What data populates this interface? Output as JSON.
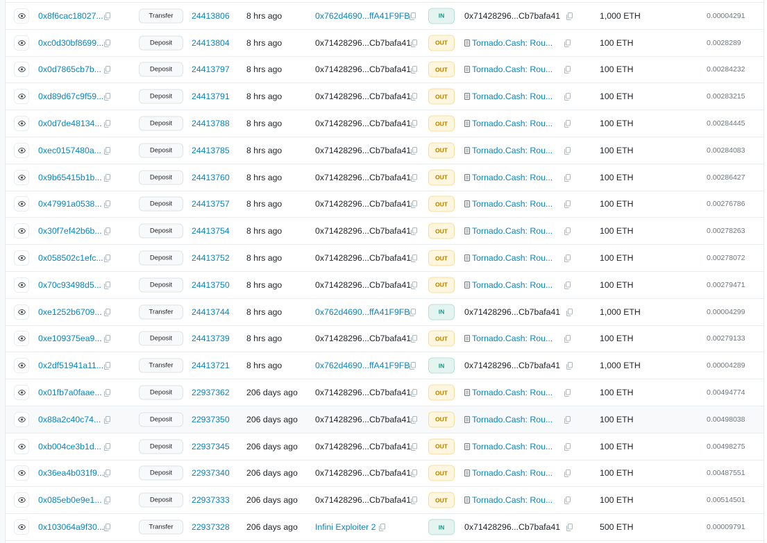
{
  "colors": {
    "link": "#0784c3",
    "in_badge": "#00a186",
    "out_badge": "#b47d00"
  },
  "icons": {
    "view": "eye-icon",
    "copy": "copy-icon",
    "contract": "contract-document-icon"
  },
  "rows": [
    {
      "hash": "0x8f6cac18027...",
      "method": "Transfer",
      "block": "24413806",
      "age": "8 hrs ago",
      "from": "0x762d4690...ffA41F9FB",
      "from_link": true,
      "direction": "IN",
      "to": "0x71428296...Cb7bafa41",
      "to_contract": false,
      "amount": "1,000 ETH",
      "fee": "0.00004291"
    },
    {
      "hash": "0xc0d30bf8699...",
      "method": "Deposit",
      "block": "24413804",
      "age": "8 hrs ago",
      "from": "0x71428296...Cb7bafa41",
      "from_link": false,
      "direction": "OUT",
      "to": "Tornado.Cash: Rou...",
      "to_contract": true,
      "amount": "100 ETH",
      "fee": "0.0028289"
    },
    {
      "hash": "0x0d7865cb7b...",
      "method": "Deposit",
      "block": "24413797",
      "age": "8 hrs ago",
      "from": "0x71428296...Cb7bafa41",
      "from_link": false,
      "direction": "OUT",
      "to": "Tornado.Cash: Rou...",
      "to_contract": true,
      "amount": "100 ETH",
      "fee": "0.00284232"
    },
    {
      "hash": "0xd89d67c9f59...",
      "method": "Deposit",
      "block": "24413791",
      "age": "8 hrs ago",
      "from": "0x71428296...Cb7bafa41",
      "from_link": false,
      "direction": "OUT",
      "to": "Tornado.Cash: Rou...",
      "to_contract": true,
      "amount": "100 ETH",
      "fee": "0.00283215"
    },
    {
      "hash": "0x0d7de48134...",
      "method": "Deposit",
      "block": "24413788",
      "age": "8 hrs ago",
      "from": "0x71428296...Cb7bafa41",
      "from_link": false,
      "direction": "OUT",
      "to": "Tornado.Cash: Rou...",
      "to_contract": true,
      "amount": "100 ETH",
      "fee": "0.00284445"
    },
    {
      "hash": "0xec0157480a...",
      "method": "Deposit",
      "block": "24413785",
      "age": "8 hrs ago",
      "from": "0x71428296...Cb7bafa41",
      "from_link": false,
      "direction": "OUT",
      "to": "Tornado.Cash: Rou...",
      "to_contract": true,
      "amount": "100 ETH",
      "fee": "0.00284083"
    },
    {
      "hash": "0x9b65415b1b...",
      "method": "Deposit",
      "block": "24413760",
      "age": "8 hrs ago",
      "from": "0x71428296...Cb7bafa41",
      "from_link": false,
      "direction": "OUT",
      "to": "Tornado.Cash: Rou...",
      "to_contract": true,
      "amount": "100 ETH",
      "fee": "0.00286427"
    },
    {
      "hash": "0x47991a0538...",
      "method": "Deposit",
      "block": "24413757",
      "age": "8 hrs ago",
      "from": "0x71428296...Cb7bafa41",
      "from_link": false,
      "direction": "OUT",
      "to": "Tornado.Cash: Rou...",
      "to_contract": true,
      "amount": "100 ETH",
      "fee": "0.00276786"
    },
    {
      "hash": "0x30f7ef42b6b...",
      "method": "Deposit",
      "block": "24413754",
      "age": "8 hrs ago",
      "from": "0x71428296...Cb7bafa41",
      "from_link": false,
      "direction": "OUT",
      "to": "Tornado.Cash: Rou...",
      "to_contract": true,
      "amount": "100 ETH",
      "fee": "0.00278263"
    },
    {
      "hash": "0x058502c1efc...",
      "method": "Deposit",
      "block": "24413752",
      "age": "8 hrs ago",
      "from": "0x71428296...Cb7bafa41",
      "from_link": false,
      "direction": "OUT",
      "to": "Tornado.Cash: Rou...",
      "to_contract": true,
      "amount": "100 ETH",
      "fee": "0.00278072"
    },
    {
      "hash": "0x70c93498d5...",
      "method": "Deposit",
      "block": "24413750",
      "age": "8 hrs ago",
      "from": "0x71428296...Cb7bafa41",
      "from_link": false,
      "direction": "OUT",
      "to": "Tornado.Cash: Rou...",
      "to_contract": true,
      "amount": "100 ETH",
      "fee": "0.00279471"
    },
    {
      "hash": "0xe1252b6709...",
      "method": "Transfer",
      "block": "24413744",
      "age": "8 hrs ago",
      "from": "0x762d4690...ffA41F9FB",
      "from_link": true,
      "direction": "IN",
      "to": "0x71428296...Cb7bafa41",
      "to_contract": false,
      "amount": "1,000 ETH",
      "fee": "0.00004299"
    },
    {
      "hash": "0xe109375ea9...",
      "method": "Deposit",
      "block": "24413739",
      "age": "8 hrs ago",
      "from": "0x71428296...Cb7bafa41",
      "from_link": false,
      "direction": "OUT",
      "to": "Tornado.Cash: Rou...",
      "to_contract": true,
      "amount": "100 ETH",
      "fee": "0.00279133"
    },
    {
      "hash": "0x2df51941a11...",
      "method": "Transfer",
      "block": "24413721",
      "age": "8 hrs ago",
      "from": "0x762d4690...ffA41F9FB",
      "from_link": true,
      "direction": "IN",
      "to": "0x71428296...Cb7bafa41",
      "to_contract": false,
      "amount": "1,000 ETH",
      "fee": "0.00004289"
    },
    {
      "hash": "0x01fb7a0faae...",
      "method": "Deposit",
      "block": "22937362",
      "age": "206 days ago",
      "from": "0x71428296...Cb7bafa41",
      "from_link": false,
      "direction": "OUT",
      "to": "Tornado.Cash: Rou...",
      "to_contract": true,
      "amount": "100 ETH",
      "fee": "0.00494774"
    },
    {
      "hash": "0x88a2c40c74...",
      "method": "Deposit",
      "block": "22937350",
      "age": "206 days ago",
      "from": "0x71428296...Cb7bafa41",
      "from_link": false,
      "direction": "OUT",
      "to": "Tornado.Cash: Rou...",
      "to_contract": true,
      "amount": "100 ETH",
      "fee": "0.00498038",
      "hover": true
    },
    {
      "hash": "0xb004ce3b1d...",
      "method": "Deposit",
      "block": "22937345",
      "age": "206 days ago",
      "from": "0x71428296...Cb7bafa41",
      "from_link": false,
      "direction": "OUT",
      "to": "Tornado.Cash: Rou...",
      "to_contract": true,
      "amount": "100 ETH",
      "fee": "0.00498275"
    },
    {
      "hash": "0x36ea4b031f9...",
      "method": "Deposit",
      "block": "22937340",
      "age": "206 days ago",
      "from": "0x71428296...Cb7bafa41",
      "from_link": false,
      "direction": "OUT",
      "to": "Tornado.Cash: Rou...",
      "to_contract": true,
      "amount": "100 ETH",
      "fee": "0.00487551"
    },
    {
      "hash": "0x085eb0e9e1...",
      "method": "Deposit",
      "block": "22937333",
      "age": "206 days ago",
      "from": "0x71428296...Cb7bafa41",
      "from_link": false,
      "direction": "OUT",
      "to": "Tornado.Cash: Rou...",
      "to_contract": true,
      "amount": "100 ETH",
      "fee": "0.00514501"
    },
    {
      "hash": "0x103064a9f30...",
      "method": "Transfer",
      "block": "22937328",
      "age": "206 days ago",
      "from": "Infini Exploiter 2",
      "from_link": true,
      "direction": "IN",
      "to": "0x71428296...Cb7bafa41",
      "to_contract": false,
      "amount": "500 ETH",
      "fee": "0.00009791"
    }
  ]
}
